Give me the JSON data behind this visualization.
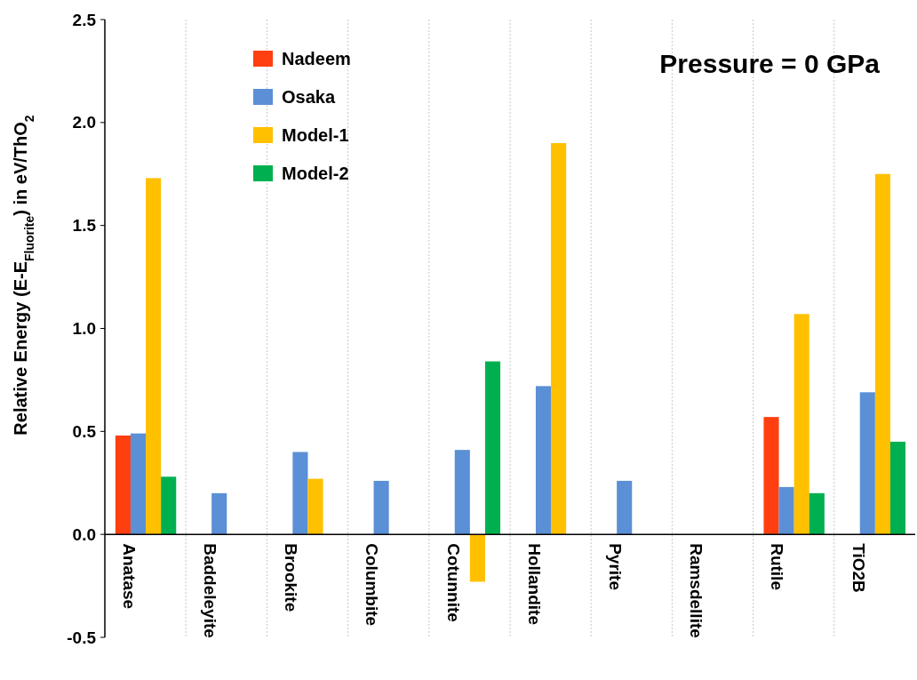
{
  "chart_data": {
    "type": "bar",
    "ylabel": "Relative Energy (E-E$_{Fluorite}$) in eV/ThO$_{2}$",
    "annotations": [
      "Pressure = 0 GPa"
    ],
    "categories": [
      "Anatase",
      "Baddeleyite",
      "Brookite",
      "Columbite",
      "Cotunnite",
      "Hollandite",
      "Pyrite",
      "Ramsdellite",
      "Rutile",
      "TiO2B"
    ],
    "series": [
      {
        "name": "Nadeem",
        "color": "#ff3f0f",
        "values": [
          0.48,
          null,
          null,
          null,
          null,
          null,
          null,
          null,
          0.57,
          null
        ]
      },
      {
        "name": "Osaka",
        "color": "#5b8fd6",
        "values": [
          0.49,
          0.2,
          0.4,
          0.26,
          0.41,
          0.72,
          0.26,
          null,
          0.23,
          0.69
        ]
      },
      {
        "name": "Model-1",
        "color": "#ffc000",
        "values": [
          1.73,
          null,
          0.27,
          null,
          -0.23,
          1.9,
          null,
          null,
          1.07,
          1.75
        ]
      },
      {
        "name": "Model-2",
        "color": "#00b050",
        "values": [
          0.28,
          null,
          null,
          null,
          0.84,
          null,
          null,
          null,
          0.2,
          0.45
        ]
      }
    ],
    "ylim": [
      -0.5,
      2.5
    ],
    "yticks": [
      {
        "value": -0.5,
        "label": "-0.5"
      },
      {
        "value": 0,
        "label": "0.0"
      },
      {
        "value": 0.5,
        "label": "0.5"
      },
      {
        "value": 1,
        "label": "1.0"
      },
      {
        "value": 1.5,
        "label": "1.5"
      },
      {
        "value": 2,
        "label": "2.0"
      },
      {
        "value": 2.5,
        "label": "2.5"
      }
    ],
    "grid": "x",
    "legend": "top left"
  }
}
